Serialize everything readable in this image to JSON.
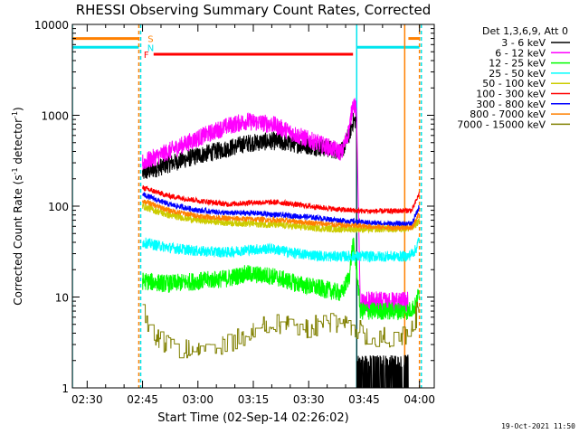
{
  "title": "RHESSI Observing Summary Count Rates, Corrected",
  "timestamp": "19-Oct-2021 11:50",
  "chart_data": {
    "type": "line",
    "xlabel": "Start Time (02-Sep-14 02:26:02)",
    "ylabel_main": "Corrected Count Rate (s",
    "ylabel_sup1": "-1",
    "ylabel_mid": " detector",
    "ylabel_sup2": "-1",
    "ylabel_end": ")",
    "ylog": true,
    "ylim": [
      1,
      10000
    ],
    "xlim": [
      "02:26",
      "04:04"
    ],
    "x_ticks": [
      "02:30",
      "02:45",
      "03:00",
      "03:15",
      "03:30",
      "03:45",
      "04:00"
    ],
    "y_ticks": [
      "1",
      "10",
      "100",
      "1000",
      "10000"
    ],
    "legend_title": "Det 1,3,6,9, Att 0",
    "legend_placement": "right",
    "flags": [
      {
        "label": "S",
        "color": "#ff8000",
        "value": 7000,
        "segments": [
          [
            "02:26",
            "02:44"
          ],
          [
            "03:57",
            "04:00"
          ]
        ]
      },
      {
        "label": "N",
        "color": "#00e5ee",
        "value": 5600,
        "segments": [
          [
            "02:26",
            "02:44"
          ],
          [
            "03:43",
            "04:00"
          ]
        ]
      },
      {
        "label": "F",
        "color": "#ff0000",
        "value": 4700,
        "segments": [
          [
            "02:48",
            "03:42"
          ]
        ]
      }
    ],
    "vertical_markers": [
      {
        "time": "02:26",
        "color": "#00e5ee",
        "style": "solid"
      },
      {
        "time": "02:44",
        "color": "#ff8000",
        "style": "dashed"
      },
      {
        "time": "02:44.5",
        "color": "#00e5ee",
        "style": "dashed"
      },
      {
        "time": "03:43",
        "color": "#00e5ee",
        "style": "solid"
      },
      {
        "time": "03:56",
        "color": "#ff8000",
        "style": "solid"
      },
      {
        "time": "04:00",
        "color": "#ff8000",
        "style": "dashed"
      },
      {
        "time": "04:00.5",
        "color": "#00e5ee",
        "style": "dashed"
      }
    ],
    "series": [
      {
        "name": "3 - 6 keV",
        "color": "#000000",
        "noise": 0.1,
        "points": [
          [
            "02:45",
            230
          ],
          [
            "02:52",
            290
          ],
          [
            "03:00",
            360
          ],
          [
            "03:08",
            430
          ],
          [
            "03:13",
            490
          ],
          [
            "03:20",
            520
          ],
          [
            "03:27",
            480
          ],
          [
            "03:35",
            430
          ],
          [
            "03:39",
            400
          ],
          [
            "03:41",
            620
          ],
          [
            "03:42",
            850
          ],
          [
            "03:43",
            900
          ]
        ],
        "tail": {
          "low": 1,
          "high": 2,
          "from": "03:43",
          "to": "03:57"
        }
      },
      {
        "name": "6 - 12 keV",
        "color": "#ff00ff",
        "noise": 0.1,
        "points": [
          [
            "02:45",
            300
          ],
          [
            "02:52",
            400
          ],
          [
            "03:00",
            560
          ],
          [
            "03:08",
            760
          ],
          [
            "03:13",
            860
          ],
          [
            "03:20",
            800
          ],
          [
            "03:27",
            600
          ],
          [
            "03:35",
            450
          ],
          [
            "03:39",
            390
          ],
          [
            "03:41",
            700
          ],
          [
            "03:42",
            1400
          ],
          [
            "03:43",
            1100
          ]
        ],
        "tail": {
          "low": 7,
          "high": 10,
          "from": "03:44",
          "to": "03:57"
        }
      },
      {
        "name": "12 - 25 keV",
        "color": "#00ff00",
        "noise": 0.1,
        "points": [
          [
            "02:45",
            15
          ],
          [
            "02:52",
            14
          ],
          [
            "03:00",
            15
          ],
          [
            "03:08",
            16
          ],
          [
            "03:13",
            18
          ],
          [
            "03:20",
            17
          ],
          [
            "03:27",
            14
          ],
          [
            "03:35",
            12
          ],
          [
            "03:39",
            11
          ],
          [
            "03:41",
            17
          ],
          [
            "03:42",
            40
          ],
          [
            "03:43",
            20
          ],
          [
            "03:44",
            7
          ],
          [
            "03:57",
            7
          ],
          [
            "03:59",
            8
          ],
          [
            "04:00",
            12
          ]
        ]
      },
      {
        "name": "25 - 50 keV",
        "color": "#00ffff",
        "noise": 0.06,
        "points": [
          [
            "02:45",
            40
          ],
          [
            "02:52",
            35
          ],
          [
            "03:00",
            32
          ],
          [
            "03:08",
            31
          ],
          [
            "03:13",
            33
          ],
          [
            "03:20",
            34
          ],
          [
            "03:27",
            30
          ],
          [
            "03:35",
            28
          ],
          [
            "03:42",
            28
          ],
          [
            "03:50",
            28
          ],
          [
            "03:57",
            28
          ],
          [
            "03:59",
            33
          ],
          [
            "04:00",
            45
          ]
        ]
      },
      {
        "name": "50 - 100 keV",
        "color": "#cccc00",
        "noise": 0.04,
        "points": [
          [
            "02:45",
            100
          ],
          [
            "02:52",
            80
          ],
          [
            "03:00",
            70
          ],
          [
            "03:08",
            66
          ],
          [
            "03:15",
            64
          ],
          [
            "03:22",
            62
          ],
          [
            "03:30",
            58
          ],
          [
            "03:38",
            56
          ],
          [
            "03:45",
            56
          ],
          [
            "03:52",
            56
          ],
          [
            "03:58",
            57
          ],
          [
            "04:00",
            70
          ]
        ]
      },
      {
        "name": "100 - 300 keV",
        "color": "#ff0000",
        "noise": 0.03,
        "points": [
          [
            "02:45",
            160
          ],
          [
            "02:52",
            130
          ],
          [
            "03:00",
            115
          ],
          [
            "03:08",
            105
          ],
          [
            "03:15",
            110
          ],
          [
            "03:22",
            110
          ],
          [
            "03:30",
            100
          ],
          [
            "03:38",
            92
          ],
          [
            "03:45",
            88
          ],
          [
            "03:52",
            88
          ],
          [
            "03:58",
            90
          ],
          [
            "04:00",
            140
          ]
        ]
      },
      {
        "name": "300 - 800 keV",
        "color": "#0000ff",
        "noise": 0.03,
        "points": [
          [
            "02:45",
            135
          ],
          [
            "02:52",
            105
          ],
          [
            "03:00",
            90
          ],
          [
            "03:08",
            84
          ],
          [
            "03:15",
            84
          ],
          [
            "03:22",
            80
          ],
          [
            "03:30",
            76
          ],
          [
            "03:38",
            70
          ],
          [
            "03:45",
            66
          ],
          [
            "03:52",
            64
          ],
          [
            "03:58",
            64
          ],
          [
            "04:00",
            100
          ]
        ]
      },
      {
        "name": "800 - 7000 keV",
        "color": "#ff8000",
        "noise": 0.03,
        "points": [
          [
            "02:45",
            115
          ],
          [
            "02:52",
            90
          ],
          [
            "03:00",
            78
          ],
          [
            "03:08",
            73
          ],
          [
            "03:15",
            72
          ],
          [
            "03:22",
            70
          ],
          [
            "03:30",
            66
          ],
          [
            "03:38",
            62
          ],
          [
            "03:45",
            60
          ],
          [
            "03:52",
            58
          ],
          [
            "03:58",
            58
          ],
          [
            "04:00",
            85
          ]
        ]
      },
      {
        "name": "7000 - 15000 keV",
        "color": "#808000",
        "noise": 0.1,
        "step": true,
        "points": [
          [
            "02:45",
            7
          ],
          [
            "02:48",
            4
          ],
          [
            "02:52",
            3
          ],
          [
            "02:58",
            2.5
          ],
          [
            "03:03",
            2.5
          ],
          [
            "03:08",
            3
          ],
          [
            "03:13",
            4
          ],
          [
            "03:20",
            5
          ],
          [
            "03:27",
            4.5
          ],
          [
            "03:35",
            5
          ],
          [
            "03:42",
            5
          ],
          [
            "03:45",
            4
          ],
          [
            "03:52",
            3.5
          ],
          [
            "03:57",
            4
          ],
          [
            "03:59",
            6
          ],
          [
            "04:00",
            9
          ]
        ]
      }
    ]
  }
}
